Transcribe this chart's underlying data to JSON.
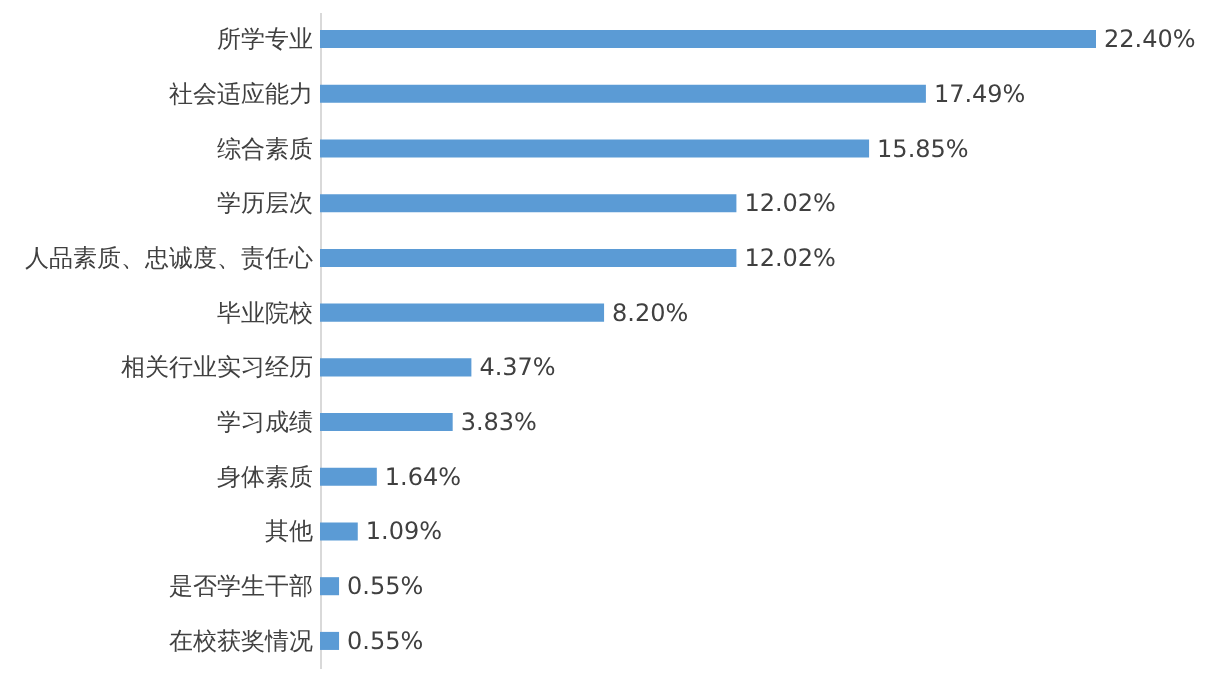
{
  "chart_data": {
    "type": "bar",
    "orientation": "horizontal",
    "color": "#5b9bd5",
    "categories": [
      "所学专业",
      "社会适应能力",
      "综合素质",
      "学历层次",
      "人品素质、忠诚度、责任心",
      "毕业院校",
      "相关行业实习经历",
      "学习成绩",
      "身体素质",
      "其他",
      "是否学生干部",
      "在校获奖情况"
    ],
    "values": [
      22.4,
      17.49,
      15.85,
      12.02,
      12.02,
      8.2,
      4.37,
      3.83,
      1.64,
      1.09,
      0.55,
      0.55
    ],
    "value_labels": [
      "22.40%",
      "17.49%",
      "15.85%",
      "12.02%",
      "12.02%",
      "8.20%",
      "4.37%",
      "3.83%",
      "1.64%",
      "1.09%",
      "0.55%",
      "0.55%"
    ]
  }
}
